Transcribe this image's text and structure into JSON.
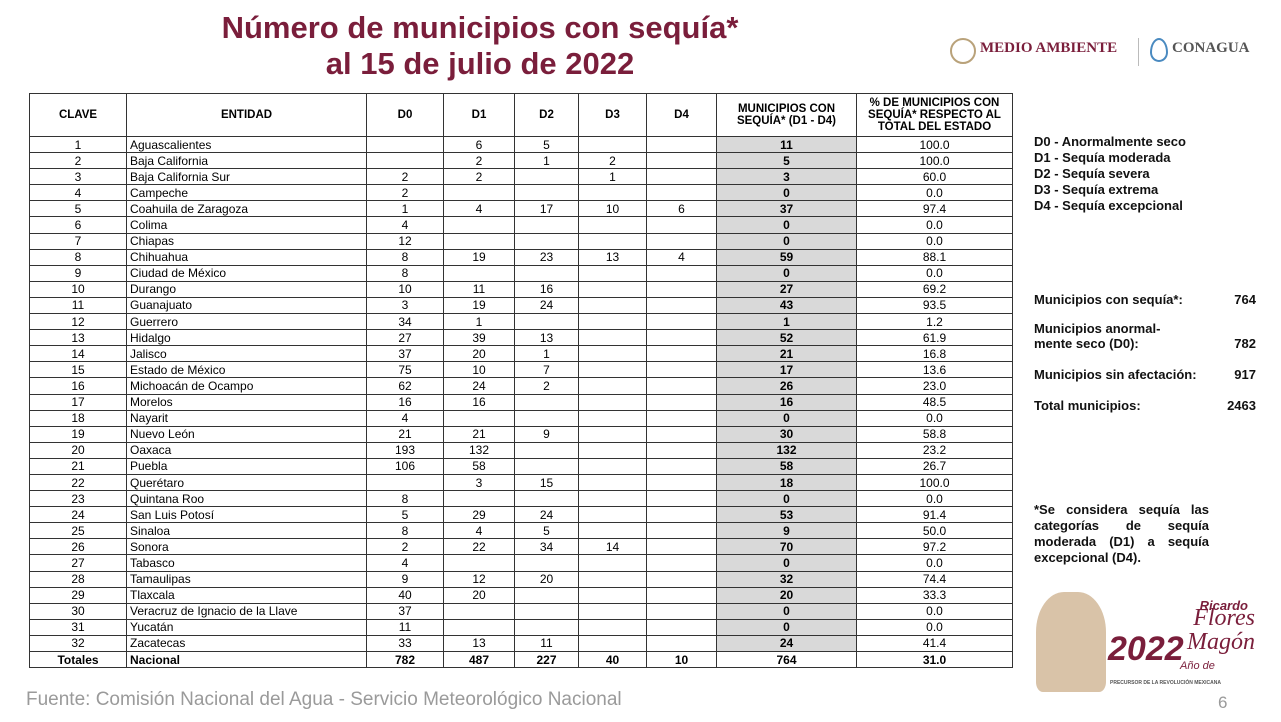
{
  "header": {
    "title_line1": "Número de municipios con sequía*",
    "title_line2": "al 15 de julio de 2022",
    "logo_left": "MEDIO AMBIENTE",
    "logo_right": "CONAGUA"
  },
  "table": {
    "columns": [
      "CLAVE",
      "ENTIDAD",
      "D0",
      "D1",
      "D2",
      "D3",
      "D4",
      "MUNICIPIOS CON SEQUÍA* (D1 - D4)",
      "% DE MUNICIPIOS CON SEQUÍA* RESPECTO AL TOTAL DEL ESTADO"
    ],
    "rows": [
      [
        "1",
        "Aguascalientes",
        null,
        "6",
        "5",
        null,
        null,
        "11",
        "100.0"
      ],
      [
        "2",
        "Baja California",
        null,
        "2",
        "1",
        "2",
        null,
        "5",
        "100.0"
      ],
      [
        "3",
        "Baja California Sur",
        "2",
        "2",
        null,
        "1",
        null,
        "3",
        "60.0"
      ],
      [
        "4",
        "Campeche",
        "2",
        null,
        null,
        null,
        null,
        "0",
        "0.0"
      ],
      [
        "5",
        "Coahuila de Zaragoza",
        "1",
        "4",
        "17",
        "10",
        "6",
        "37",
        "97.4"
      ],
      [
        "6",
        "Colima",
        "4",
        null,
        null,
        null,
        null,
        "0",
        "0.0"
      ],
      [
        "7",
        "Chiapas",
        "12",
        null,
        null,
        null,
        null,
        "0",
        "0.0"
      ],
      [
        "8",
        "Chihuahua",
        "8",
        "19",
        "23",
        "13",
        "4",
        "59",
        "88.1"
      ],
      [
        "9",
        "Ciudad de México",
        "8",
        null,
        null,
        null,
        null,
        "0",
        "0.0"
      ],
      [
        "10",
        "Durango",
        "10",
        "11",
        "16",
        null,
        null,
        "27",
        "69.2"
      ],
      [
        "11",
        "Guanajuato",
        "3",
        "19",
        "24",
        null,
        null,
        "43",
        "93.5"
      ],
      [
        "12",
        "Guerrero",
        "34",
        "1",
        null,
        null,
        null,
        "1",
        "1.2"
      ],
      [
        "13",
        "Hidalgo",
        "27",
        "39",
        "13",
        null,
        null,
        "52",
        "61.9"
      ],
      [
        "14",
        "Jalisco",
        "37",
        "20",
        "1",
        null,
        null,
        "21",
        "16.8"
      ],
      [
        "15",
        "Estado de México",
        "75",
        "10",
        "7",
        null,
        null,
        "17",
        "13.6"
      ],
      [
        "16",
        "Michoacán de Ocampo",
        "62",
        "24",
        "2",
        null,
        null,
        "26",
        "23.0"
      ],
      [
        "17",
        "Morelos",
        "16",
        "16",
        null,
        null,
        null,
        "16",
        "48.5"
      ],
      [
        "18",
        "Nayarit",
        "4",
        null,
        null,
        null,
        null,
        "0",
        "0.0"
      ],
      [
        "19",
        "Nuevo León",
        "21",
        "21",
        "9",
        null,
        null,
        "30",
        "58.8"
      ],
      [
        "20",
        "Oaxaca",
        "193",
        "132",
        null,
        null,
        null,
        "132",
        "23.2"
      ],
      [
        "21",
        "Puebla",
        "106",
        "58",
        null,
        null,
        null,
        "58",
        "26.7"
      ],
      [
        "22",
        "Querétaro",
        null,
        "3",
        "15",
        null,
        null,
        "18",
        "100.0"
      ],
      [
        "23",
        "Quintana Roo",
        "8",
        null,
        null,
        null,
        null,
        "0",
        "0.0"
      ],
      [
        "24",
        "San Luis Potosí",
        "5",
        "29",
        "24",
        null,
        null,
        "53",
        "91.4"
      ],
      [
        "25",
        "Sinaloa",
        "8",
        "4",
        "5",
        null,
        null,
        "9",
        "50.0"
      ],
      [
        "26",
        "Sonora",
        "2",
        "22",
        "34",
        "14",
        null,
        "70",
        "97.2"
      ],
      [
        "27",
        "Tabasco",
        "4",
        null,
        null,
        null,
        null,
        "0",
        "0.0"
      ],
      [
        "28",
        "Tamaulipas",
        "9",
        "12",
        "20",
        null,
        null,
        "32",
        "74.4"
      ],
      [
        "29",
        "Tlaxcala",
        "40",
        "20",
        null,
        null,
        null,
        "20",
        "33.3"
      ],
      [
        "30",
        "Veracruz de Ignacio de la Llave",
        "37",
        null,
        null,
        null,
        null,
        "0",
        "0.0"
      ],
      [
        "31",
        "Yucatán",
        "11",
        null,
        null,
        null,
        null,
        "0",
        "0.0"
      ],
      [
        "32",
        "Zacatecas",
        "33",
        "13",
        "11",
        null,
        null,
        "24",
        "41.4"
      ],
      [
        "Totales",
        "Nacional",
        "782",
        "487",
        "227",
        "40",
        "10",
        "764",
        "31.0"
      ]
    ]
  },
  "legend": [
    "D0 - Anormalmente seco",
    "D1 - Sequía moderada",
    "D2 - Sequía severa",
    "D3 - Sequía extrema",
    "D4 - Sequía excepcional"
  ],
  "summary": [
    {
      "label": "Municipios con sequía*:",
      "value": "764"
    },
    {
      "label": "Municipios anormal-mente seco (D0):",
      "value": "782"
    },
    {
      "label": "Municipios sin afectación:",
      "value": "917"
    },
    {
      "label": "Total municipios:",
      "value": "2463"
    }
  ],
  "note": "*Se considera sequía las categorías de sequía moderada (D1) a sequía excepcional (D4).",
  "badge": {
    "year": "2022",
    "text": "Año de",
    "first_name": "Ricardo",
    "last_name": "Flores Magón",
    "caption": "PRECURSOR DE LA REVOLUCIÓN MEXICANA"
  },
  "footer": {
    "source": "Fuente: Comisión Nacional del Agua - Servicio Meteorológico Nacional",
    "page": "6"
  }
}
